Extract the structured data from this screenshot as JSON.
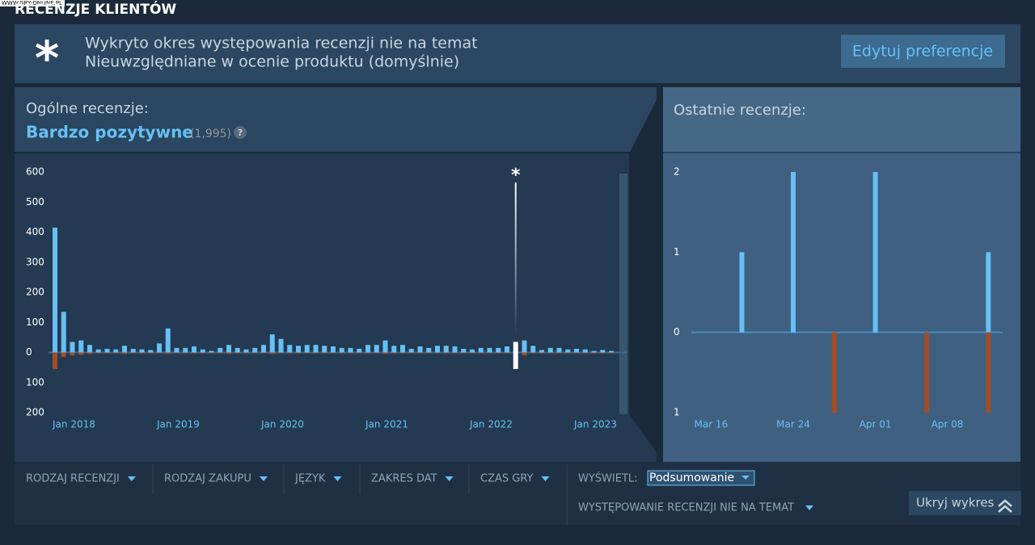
{
  "watermark": "WWW.GRY-ONLINE.PL",
  "header": {
    "title": "RECENZJE KLIENTÓW"
  },
  "notice": {
    "icon": "*",
    "line1": "Wykryto okres występowania recenzji nie na temat",
    "line2": "Nieuwzględniane w ocenie produktu (domyślnie)",
    "button": "Edytuj preferencje"
  },
  "summary": {
    "label": "Ogólne recenzje:",
    "rating": "Bardzo pozytywne",
    "count": "(1,995)",
    "help": "?"
  },
  "recent": {
    "label": "Ostatnie recenzje:"
  },
  "charts": [
    {
      "type": "bar",
      "categories": [
        "Jan 2018",
        null,
        null,
        null,
        null,
        null,
        null,
        null,
        null,
        null,
        null,
        null,
        "Jan 2019",
        null,
        null,
        null,
        null,
        null,
        null,
        null,
        null,
        null,
        null,
        null,
        "Jan 2020",
        null,
        null,
        null,
        null,
        null,
        null,
        null,
        null,
        null,
        null,
        null,
        "Jan 2021",
        null,
        null,
        null,
        null,
        null,
        null,
        null,
        null,
        null,
        null,
        null,
        "Jan 2022",
        null,
        null,
        null,
        null,
        null,
        null,
        null,
        null,
        null,
        null,
        null,
        "Jan 2023",
        null,
        null,
        null,
        null
      ],
      "series": [
        {
          "color": "#66c0f4",
          "values": [
            415,
            135,
            35,
            40,
            25,
            10,
            12,
            10,
            22,
            12,
            10,
            8,
            30,
            80,
            15,
            15,
            20,
            10,
            5,
            15,
            25,
            15,
            10,
            15,
            25,
            60,
            45,
            25,
            22,
            25,
            25,
            22,
            20,
            15,
            15,
            12,
            25,
            25,
            40,
            22,
            25,
            12,
            20,
            15,
            22,
            22,
            20,
            12,
            10,
            15,
            15,
            15,
            20,
            35,
            40,
            22,
            8,
            15,
            15,
            10,
            12,
            10,
            5,
            8,
            5
          ]
        },
        {
          "color": "#a34c25",
          "values": [
            -55,
            -15,
            -10,
            -8,
            -5,
            -3,
            -3,
            -3,
            -5,
            -3,
            -3,
            -3,
            -3,
            -5,
            -3,
            -3,
            -3,
            -3,
            -3,
            -3,
            -5,
            -3,
            -3,
            -3,
            -3,
            -5,
            -3,
            -3,
            -3,
            -3,
            -3,
            -3,
            -3,
            -3,
            -3,
            -3,
            -3,
            -3,
            -5,
            -3,
            -3,
            -3,
            -3,
            -3,
            -3,
            -3,
            -3,
            -3,
            -3,
            -3,
            -3,
            -3,
            -3,
            -55,
            -10,
            -3,
            -3,
            -3,
            -3,
            -3,
            -3,
            -3,
            -3,
            -3,
            -3
          ]
        }
      ],
      "highlight": {
        "index": 53,
        "color": "#ffffff"
      },
      "annotation": "*",
      "ylim": [
        -200,
        600
      ],
      "yticks": [
        600,
        500,
        400,
        300,
        200,
        100,
        0,
        {
          "value": -100,
          "label": "100"
        },
        {
          "value": -200,
          "label": "200"
        }
      ]
    },
    {
      "type": "bar",
      "categories": [
        null,
        null,
        "Mar 16",
        null,
        null,
        null,
        null,
        null,
        null,
        null,
        "Mar 24",
        null,
        null,
        null,
        null,
        null,
        null,
        null,
        "Apr 01",
        null,
        null,
        null,
        null,
        null,
        null,
        "Apr 08",
        null,
        null,
        null,
        null,
        null
      ],
      "series": [
        {
          "color": "#66c0f4",
          "values": [
            0,
            0,
            0,
            0,
            0,
            1,
            0,
            0,
            0,
            0,
            2,
            0,
            0,
            0,
            0,
            0,
            0,
            0,
            2,
            0,
            0,
            0,
            0,
            0,
            0,
            0,
            0,
            0,
            0,
            1,
            0
          ]
        },
        {
          "color": "#a34c25",
          "values": [
            0,
            0,
            0,
            0,
            0,
            0,
            0,
            0,
            0,
            0,
            0,
            0,
            0,
            0,
            -1,
            0,
            0,
            0,
            0,
            0,
            0,
            0,
            0,
            -1,
            0,
            0,
            0,
            0,
            0,
            -1,
            0
          ]
        }
      ],
      "ylim": [
        -1,
        2
      ],
      "yticks": [
        2,
        1,
        0,
        {
          "value": -1,
          "label": "1"
        }
      ]
    }
  ],
  "filters": {
    "items": [
      "RODZAJ RECENZJI",
      "RODZAJ ZAKUPU",
      "JĘZYK",
      "ZAKRES DAT",
      "CZAS GRY"
    ],
    "display_label": "WYŚWIETL:",
    "display_value": "Podsumowanie",
    "offtopic": "WYSTĘPOWANIE RECENZJI NIE NA TEMAT",
    "hide": "Ukryj wykres"
  }
}
